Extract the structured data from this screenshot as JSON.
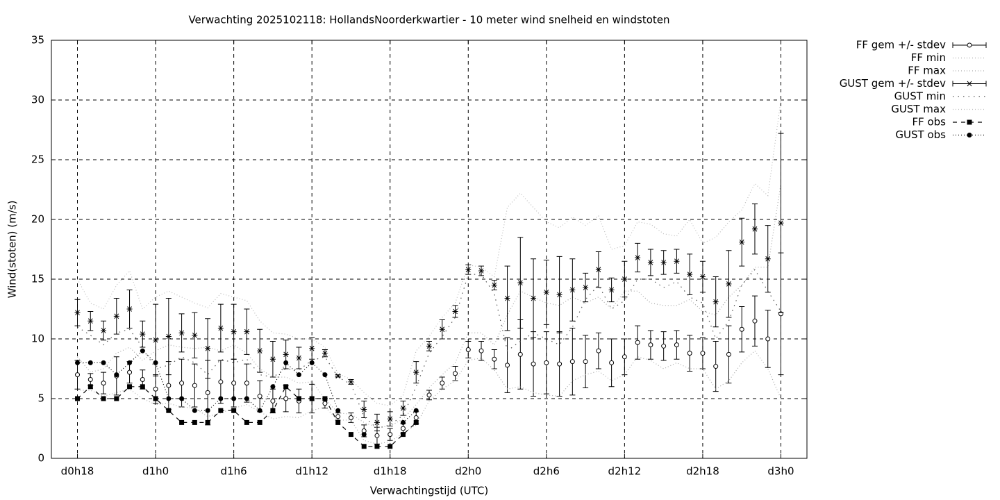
{
  "chart_data": {
    "type": "errorbar-line",
    "title": "Verwachting 2025102118: HollandsNoorderkwartier - 10 meter wind snelheid en windstoten",
    "x_label": "Verwachtingstijd (UTC)",
    "y_label": "Wind(stoten) (m/s)",
    "x": [
      18,
      19,
      20,
      21,
      22,
      23,
      24,
      25,
      26,
      27,
      28,
      29,
      30,
      31,
      32,
      33,
      34,
      35,
      36,
      37,
      38,
      39,
      40,
      41,
      42,
      43,
      44,
      45,
      46,
      47,
      48,
      49,
      50,
      51,
      52,
      53,
      54,
      55,
      56,
      57,
      58,
      59,
      60,
      61,
      62,
      63,
      64,
      65,
      66,
      67,
      68,
      69,
      70,
      71,
      72
    ],
    "xlim": [
      16,
      74
    ],
    "xticks": [
      {
        "value": 18,
        "label": "d0h18"
      },
      {
        "value": 24,
        "label": "d1h0"
      },
      {
        "value": 30,
        "label": "d1h6"
      },
      {
        "value": 36,
        "label": "d1h12"
      },
      {
        "value": 42,
        "label": "d1h18"
      },
      {
        "value": 48,
        "label": "d2h0"
      },
      {
        "value": 54,
        "label": "d2h6"
      },
      {
        "value": 60,
        "label": "d2h12"
      },
      {
        "value": 66,
        "label": "d2h18"
      },
      {
        "value": 72,
        "label": "d3h0"
      }
    ],
    "ylim": [
      0,
      35
    ],
    "yticks": [
      0,
      5,
      10,
      15,
      20,
      25,
      30,
      35
    ],
    "grid": true,
    "legend": "right",
    "series": [
      {
        "name": "FF gem +/- stdev",
        "color": "#000000",
        "marker": "open-circle",
        "line": "none",
        "values": [
          7.0,
          6.6,
          6.3,
          6.9,
          7.2,
          6.6,
          5.8,
          6.1,
          6.3,
          6.1,
          5.5,
          6.4,
          6.3,
          6.3,
          5.2,
          4.8,
          5.0,
          4.8,
          5.0,
          4.6,
          3.5,
          3.4,
          2.3,
          1.9,
          2.0,
          2.5,
          3.4,
          5.3,
          6.3,
          7.1,
          9.1,
          9.0,
          8.3,
          7.8,
          8.7,
          7.9,
          8.0,
          7.9,
          8.1,
          8.1,
          9.0,
          8.0,
          8.5,
          9.7,
          9.5,
          9.4,
          9.5,
          8.8,
          8.8,
          7.7,
          8.7,
          10.8,
          11.5,
          10.0,
          12.1
        ],
        "errors": [
          1.2,
          0.5,
          0.9,
          1.6,
          0.9,
          0.8,
          1.2,
          2.0,
          2.0,
          1.8,
          2.7,
          1.8,
          2.0,
          1.6,
          1.3,
          1.0,
          1.1,
          1.0,
          1.2,
          0.4,
          0.3,
          0.4,
          0.5,
          0.7,
          0.5,
          0.4,
          0.5,
          0.4,
          0.5,
          0.6,
          0.7,
          0.8,
          0.8,
          2.3,
          2.9,
          2.7,
          2.6,
          2.7,
          2.8,
          2.2,
          1.5,
          2.0,
          1.5,
          1.4,
          1.2,
          1.2,
          1.2,
          1.5,
          1.3,
          2.1,
          2.4,
          1.9,
          2.1,
          2.4,
          5.1
        ]
      },
      {
        "name": "FF min",
        "color": "#aaaaaa",
        "marker": null,
        "line": "dotted",
        "values": [
          5.7,
          5.7,
          5.2,
          5.5,
          5.8,
          5.0,
          4.5,
          4.6,
          4.3,
          4.2,
          3.5,
          3.8,
          4.2,
          4.5,
          3.9,
          3.3,
          3.5,
          3.4,
          4.0,
          4.3,
          3.2,
          3.2,
          1.5,
          1.2,
          1.4,
          2.1,
          2.8,
          4.8,
          5.8,
          6.5,
          8.2,
          8.4,
          7.4,
          5.8,
          6.0,
          5.5,
          5.3,
          5.2,
          6.5,
          7.0,
          7.3,
          6.5,
          7.0,
          8.5,
          8.2,
          7.5,
          8.0,
          7.5,
          7.5,
          5.8,
          6.5,
          8.0,
          9.0,
          7.5,
          5.0
        ]
      },
      {
        "name": "FF max",
        "color": "#aaaaaa",
        "marker": null,
        "line": "dotted",
        "values": [
          8.5,
          7.2,
          7.5,
          8.8,
          9.3,
          8.2,
          9.0,
          9.5,
          9.3,
          9.2,
          9.3,
          9.0,
          9.5,
          8.8,
          7.5,
          6.8,
          6.8,
          6.3,
          6.4,
          5.0,
          3.8,
          3.7,
          3.0,
          2.6,
          2.7,
          3.3,
          4.5,
          5.9,
          7.0,
          8.0,
          10.5,
          10.5,
          9.5,
          12.0,
          14.0,
          13.5,
          13.0,
          12.8,
          13.5,
          13.0,
          13.5,
          12.5,
          14.0,
          14.0,
          13.0,
          12.8,
          12.8,
          13.3,
          12.3,
          12.0,
          13.5,
          14.5,
          16.0,
          16.0,
          23.0
        ]
      },
      {
        "name": "GUST gem +/- stdev",
        "color": "#000000",
        "marker": "star",
        "line": "none",
        "values": [
          12.2,
          11.5,
          10.7,
          11.9,
          12.5,
          10.4,
          9.9,
          10.2,
          10.5,
          10.3,
          9.2,
          10.9,
          10.6,
          10.6,
          9.0,
          8.3,
          8.7,
          8.4,
          9.2,
          8.8,
          6.9,
          6.4,
          4.1,
          3.0,
          3.3,
          4.2,
          7.2,
          9.4,
          10.8,
          12.3,
          15.8,
          15.7,
          14.5,
          13.4,
          14.7,
          13.4,
          13.9,
          13.7,
          14.1,
          14.3,
          15.8,
          14.1,
          15.0,
          16.8,
          16.4,
          16.4,
          16.5,
          15.4,
          15.2,
          13.1,
          14.6,
          18.1,
          19.2,
          16.7,
          19.7
        ],
        "errors": [
          1.1,
          0.8,
          0.8,
          1.5,
          1.6,
          1.1,
          3.0,
          3.2,
          1.6,
          1.9,
          2.5,
          2.0,
          2.3,
          1.9,
          1.8,
          1.5,
          1.2,
          0.9,
          0.9,
          0.3,
          0.1,
          0.2,
          0.7,
          0.7,
          0.6,
          0.6,
          0.9,
          0.4,
          0.8,
          0.5,
          0.4,
          0.4,
          0.4,
          2.7,
          3.8,
          3.3,
          2.7,
          3.2,
          2.6,
          1.2,
          1.5,
          1.0,
          1.5,
          1.2,
          1.1,
          1.0,
          1.0,
          1.7,
          1.3,
          2.1,
          2.8,
          2.0,
          2.1,
          2.8,
          7.5
        ]
      },
      {
        "name": "GUST min",
        "color": "#555555",
        "marker": null,
        "line": "sparse-dotted",
        "values": [
          11.0,
          10.3,
          9.5,
          10.5,
          10.8,
          9.3,
          7.5,
          7.8,
          8.5,
          8.0,
          7.0,
          8.3,
          8.0,
          8.3,
          7.0,
          6.8,
          7.5,
          7.4,
          8.2,
          8.5,
          6.8,
          6.2,
          3.5,
          2.5,
          2.8,
          3.6,
          6.0,
          8.8,
          10.2,
          11.8,
          15.4,
          15.4,
          13.8,
          9.0,
          9.8,
          10.5,
          10.0,
          9.5,
          11.0,
          13.3,
          14.5,
          12.5,
          13.2,
          15.0,
          15.0,
          14.3,
          14.8,
          13.5,
          13.0,
          10.0,
          11.5,
          14.5,
          15.8,
          14.0,
          12.3
        ]
      },
      {
        "name": "GUST max",
        "color": "#bbbbbb",
        "marker": null,
        "line": "dotted",
        "values": [
          15.0,
          13.0,
          12.5,
          14.5,
          15.7,
          12.5,
          13.5,
          14.0,
          13.5,
          13.0,
          12.6,
          13.8,
          13.5,
          13.2,
          11.5,
          10.5,
          10.4,
          10.0,
          10.0,
          9.3,
          7.1,
          6.6,
          5.5,
          4.6,
          4.4,
          5.3,
          9.0,
          10.2,
          11.8,
          13.0,
          16.2,
          16.0,
          15.2,
          21.0,
          22.2,
          21.0,
          19.8,
          19.3,
          20.2,
          19.5,
          20.3,
          17.5,
          17.8,
          19.8,
          19.6,
          18.8,
          18.6,
          20.0,
          18.0,
          18.5,
          19.8,
          20.8,
          23.0,
          22.0,
          30.0
        ]
      },
      {
        "name": "FF obs",
        "color": "#000000",
        "marker": "square",
        "line": "dashed",
        "values": [
          5,
          6,
          5,
          5,
          6,
          6,
          5,
          4,
          3,
          3,
          3,
          4,
          4,
          3,
          3,
          4,
          6,
          5,
          5,
          5,
          3,
          2,
          1,
          1,
          1,
          2,
          3,
          null,
          null,
          null,
          null,
          null,
          null,
          null,
          null,
          null,
          null,
          null,
          null,
          null,
          null,
          null,
          null,
          null,
          null,
          null,
          null,
          null,
          null,
          null,
          null,
          null,
          null,
          null,
          null
        ]
      },
      {
        "name": "GUST obs",
        "color": "#000000",
        "marker": "dot",
        "line": "dotted",
        "values": [
          8,
          8,
          8,
          7,
          8,
          9,
          8,
          5,
          5,
          4,
          4,
          5,
          5,
          5,
          4,
          6,
          8,
          7,
          8,
          7,
          4,
          null,
          2,
          null,
          null,
          3,
          4,
          null,
          null,
          null,
          null,
          null,
          null,
          null,
          null,
          null,
          null,
          null,
          null,
          null,
          null,
          null,
          null,
          null,
          null,
          null,
          null,
          null,
          null,
          null,
          null,
          null,
          null,
          null,
          null
        ]
      }
    ]
  }
}
